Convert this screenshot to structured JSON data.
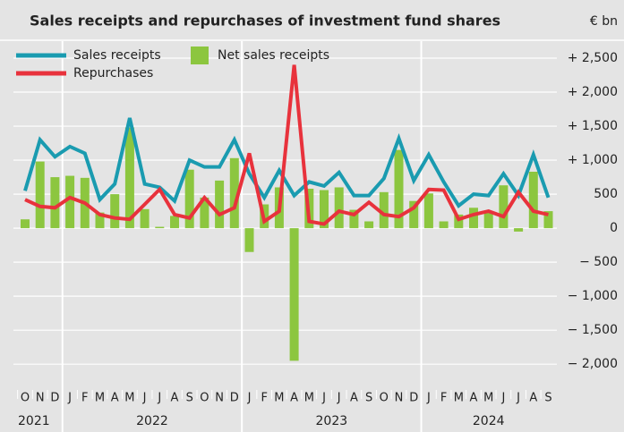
{
  "chart_data": {
    "type": "bar-line",
    "title": "Sales receipts and repurchases of investment fund shares",
    "unit": "€ bn",
    "categories": [
      "O",
      "N",
      "D",
      "J",
      "F",
      "M",
      "A",
      "M",
      "J",
      "J",
      "A",
      "S",
      "O",
      "N",
      "D",
      "J",
      "F",
      "M",
      "A",
      "M",
      "J",
      "J",
      "A",
      "S",
      "O",
      "N",
      "D",
      "J",
      "F",
      "M",
      "A",
      "M",
      "J",
      "J",
      "A",
      "S"
    ],
    "years": [
      "2021",
      "2022",
      "2023",
      "2024"
    ],
    "series": [
      {
        "name": "Sales receipts",
        "color": "#1a9bb0",
        "kind": "line",
        "values": [
          550,
          1300,
          1050,
          1200,
          1100,
          420,
          650,
          1620,
          650,
          600,
          400,
          1000,
          900,
          900,
          1300,
          800,
          450,
          850,
          480,
          680,
          620,
          820,
          480,
          480,
          730,
          1320,
          700,
          1080,
          680,
          330,
          500,
          480,
          800,
          480,
          1080,
          450
        ]
      },
      {
        "name": "Net sales receipts",
        "color": "#8cc63f",
        "kind": "bar",
        "values": [
          130,
          980,
          750,
          770,
          740,
          230,
          500,
          1480,
          280,
          20,
          180,
          860,
          450,
          700,
          1030,
          -350,
          350,
          600,
          -1950,
          580,
          560,
          600,
          270,
          100,
          530,
          1150,
          400,
          510,
          100,
          200,
          300,
          230,
          630,
          -50,
          830,
          250
        ]
      },
      {
        "name": "Repurchases",
        "color": "#e8323c",
        "kind": "line",
        "values": [
          420,
          320,
          300,
          450,
          370,
          200,
          150,
          130,
          350,
          570,
          200,
          150,
          450,
          200,
          300,
          1100,
          100,
          250,
          2400,
          100,
          60,
          250,
          200,
          380,
          200,
          170,
          300,
          570,
          560,
          130,
          200,
          250,
          170,
          530,
          250,
          200
        ]
      }
    ],
    "ylim": [
      -2300,
      2750
    ],
    "yticks": [
      {
        "value": 2500,
        "label": "+ 2,500"
      },
      {
        "value": 2000,
        "label": "+ 2,000"
      },
      {
        "value": 1500,
        "label": "+ 1,500"
      },
      {
        "value": 1000,
        "label": "+ 1,000"
      },
      500,
      0,
      {
        "value": -500,
        "label": "− 500"
      },
      {
        "value": -1000,
        "label": "− 1,000"
      },
      {
        "value": -1500,
        "label": "− 1,500"
      },
      {
        "value": -2000,
        "label": "− 2,000"
      }
    ],
    "grid": true
  }
}
